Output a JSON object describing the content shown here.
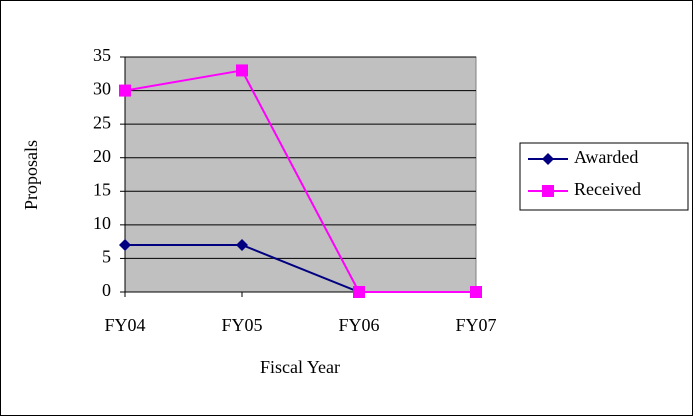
{
  "chart_data": {
    "type": "line",
    "x_label": "Fiscal Year",
    "y_label": "Proposals",
    "categories": [
      "FY04",
      "FY05",
      "FY06",
      "FY07"
    ],
    "series": [
      {
        "name": "Awarded",
        "color": "#000080",
        "marker": "diamond",
        "values": [
          7,
          7,
          0,
          0
        ]
      },
      {
        "name": "Received",
        "color": "#ff00ff",
        "marker": "square",
        "values": [
          30,
          33,
          0,
          0
        ]
      }
    ],
    "ylim": [
      0,
      35
    ],
    "yticks": [
      0,
      5,
      10,
      15,
      20,
      25,
      30,
      35
    ],
    "grid": true,
    "legend": "right",
    "plot_background": "#c0c0c0"
  }
}
